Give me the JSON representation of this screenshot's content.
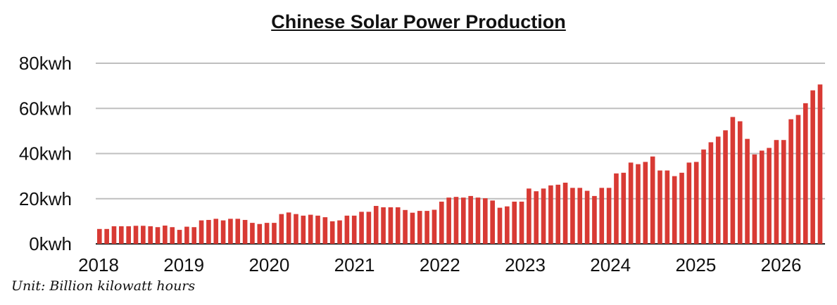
{
  "chart_data": {
    "type": "bar",
    "title": "Chinese Solar Power Production",
    "note": "Unit: Billion kilowatt hours",
    "ylabel": "",
    "xlabel": "",
    "ylim": [
      0,
      80
    ],
    "yticks": [
      0,
      20,
      40,
      60,
      80
    ],
    "ytick_labels": [
      "0kwh",
      "20kwh",
      "40kwh",
      "60kwh",
      "80kwh"
    ],
    "xtick_labels": [
      "2018",
      "2019",
      "2020",
      "2021",
      "2022",
      "2023",
      "2024",
      "2025",
      "2026"
    ],
    "bar_color": "#d83a34",
    "grid_color": "#bfbfbf",
    "grid": true,
    "values": [
      6.6,
      6.6,
      7.8,
      7.8,
      7.8,
      8.0,
      8.0,
      7.8,
      7.4,
      8.1,
      7.4,
      6.2,
      7.6,
      7.4,
      10.4,
      10.6,
      11.1,
      10.4,
      11.1,
      11.1,
      10.6,
      9.3,
      8.8,
      9.3,
      9.3,
      13.2,
      13.9,
      13.2,
      12.5,
      12.9,
      12.5,
      11.8,
      10.0,
      10.4,
      12.5,
      12.5,
      14.2,
      14.2,
      16.8,
      16.2,
      16.2,
      16.2,
      15.0,
      13.8,
      14.6,
      14.6,
      15.1,
      18.7,
      20.5,
      20.8,
      20.5,
      21.2,
      20.5,
      20.2,
      19.2,
      16.0,
      16.6,
      18.7,
      18.7,
      24.5,
      23.3,
      24.5,
      25.9,
      26.2,
      27.1,
      24.8,
      24.8,
      23.5,
      21.2,
      24.8,
      24.8,
      31.2,
      31.5,
      36.0,
      35.3,
      36.3,
      38.7,
      32.5,
      32.5,
      30.0,
      31.5,
      36.0,
      36.3,
      41.8,
      45.0,
      47.5,
      50.3,
      56.2,
      54.3,
      46.5,
      39.6,
      41.3,
      42.5,
      46.0,
      46.0,
      55.2,
      57.1,
      62.3,
      68.0,
      70.6
    ]
  }
}
